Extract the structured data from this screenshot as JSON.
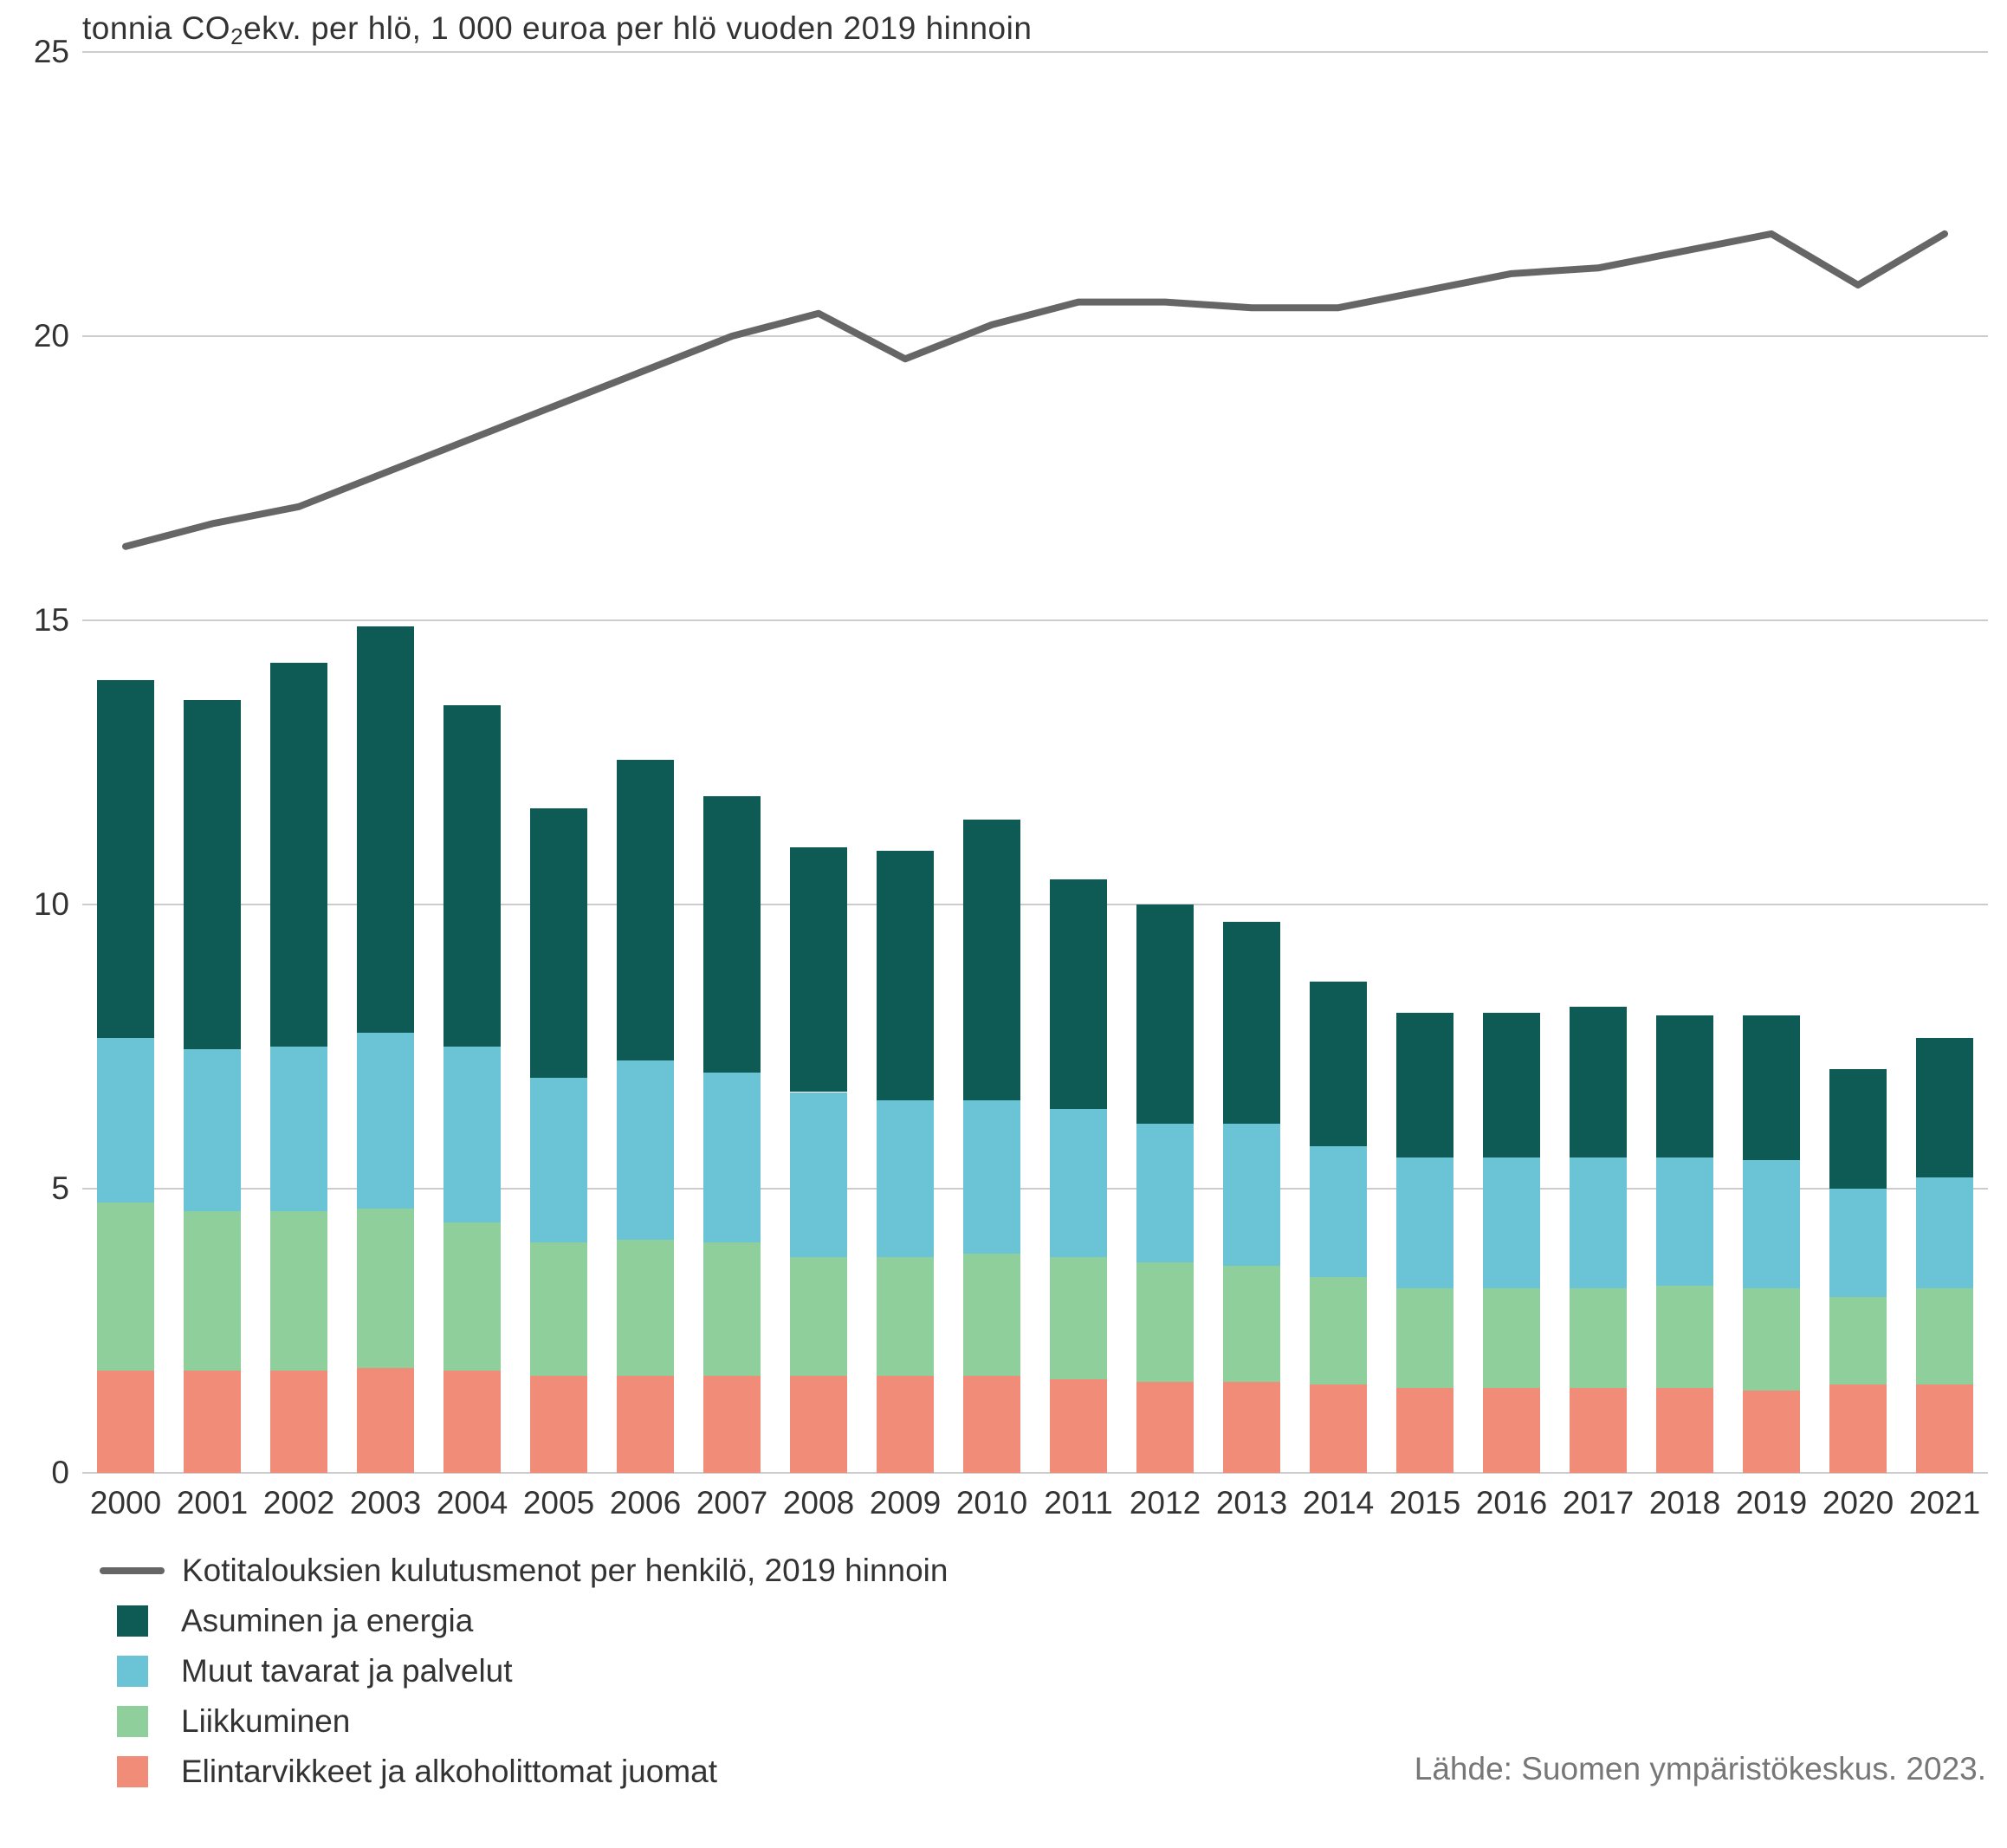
{
  "title_part1": "tonnia CO",
  "title_sub": "2",
  "title_part2": "ekv. per hlö, 1 000 euroa per hlö vuoden 2019 hinnoin",
  "source": "Lähde: Suomen ympäristökeskus. 2023.",
  "chart": {
    "type": "stacked-bar-with-line",
    "background_color": "#ffffff",
    "grid_color": "#cccccc",
    "label_color": "#333333",
    "label_fontsize": 37,
    "ylim": [
      0,
      25
    ],
    "ytick_step": 5,
    "yticks": [
      0,
      5,
      10,
      15,
      20,
      25
    ],
    "categories": [
      "2000",
      "2001",
      "2002",
      "2003",
      "2004",
      "2005",
      "2006",
      "2007",
      "2008",
      "2009",
      "2010",
      "2011",
      "2012",
      "2013",
      "2014",
      "2015",
      "2016",
      "2017",
      "2018",
      "2019",
      "2020",
      "2021"
    ],
    "bar_width_ratio": 0.66,
    "series": [
      {
        "key": "elintarvikkeet",
        "label": "Elintarvikkeet ja alkoholittomat juomat",
        "color": "#f08c78",
        "values": [
          1.8,
          1.8,
          1.8,
          1.85,
          1.8,
          1.7,
          1.7,
          1.7,
          1.7,
          1.7,
          1.7,
          1.65,
          1.6,
          1.6,
          1.55,
          1.5,
          1.5,
          1.5,
          1.5,
          1.45,
          1.55,
          1.55
        ]
      },
      {
        "key": "liikkuminen",
        "label": "Liikkuminen",
        "color": "#8fcf9b",
        "values": [
          2.95,
          2.8,
          2.8,
          2.8,
          2.6,
          2.35,
          2.4,
          2.35,
          2.1,
          2.1,
          2.15,
          2.15,
          2.1,
          2.05,
          1.9,
          1.75,
          1.75,
          1.75,
          1.8,
          1.8,
          1.55,
          1.7
        ]
      },
      {
        "key": "muut",
        "label": "Muut tavarat ja palvelut",
        "color": "#6bc4d6",
        "values": [
          2.9,
          2.85,
          2.9,
          3.1,
          3.1,
          2.9,
          3.15,
          3.0,
          2.9,
          2.75,
          2.7,
          2.6,
          2.45,
          2.5,
          2.3,
          2.3,
          2.3,
          2.3,
          2.25,
          2.25,
          1.9,
          1.95
        ]
      },
      {
        "key": "asuminen",
        "label": "Asuminen ja energia",
        "color": "#0e5a55",
        "values": [
          6.3,
          6.15,
          6.75,
          7.15,
          6.0,
          4.75,
          5.3,
          4.85,
          4.3,
          4.4,
          4.95,
          4.05,
          3.85,
          3.55,
          2.9,
          2.55,
          2.55,
          2.65,
          2.5,
          2.55,
          2.1,
          2.45
        ]
      }
    ],
    "line": {
      "label": "Kotitalouksien kulutusmenot per henkilö, 2019 hinnoin",
      "color": "#666666",
      "width": 8,
      "values": [
        16.3,
        16.7,
        17.0,
        17.6,
        18.2,
        18.8,
        19.4,
        20.0,
        20.4,
        19.6,
        20.2,
        20.6,
        20.6,
        20.5,
        20.5,
        20.8,
        21.1,
        21.2,
        21.5,
        21.8,
        20.9,
        21.8
      ]
    }
  },
  "legend": {
    "items": [
      {
        "type": "line",
        "label_key": "chart.line.label",
        "color_key": "chart.line.color"
      },
      {
        "type": "swatch",
        "label_key": "chart.series.3.label",
        "color_key": "chart.series.3.color"
      },
      {
        "type": "swatch",
        "label_key": "chart.series.2.label",
        "color_key": "chart.series.2.color"
      },
      {
        "type": "swatch",
        "label_key": "chart.series.1.label",
        "color_key": "chart.series.1.color"
      },
      {
        "type": "swatch",
        "label_key": "chart.series.0.label",
        "color_key": "chart.series.0.color"
      }
    ]
  }
}
